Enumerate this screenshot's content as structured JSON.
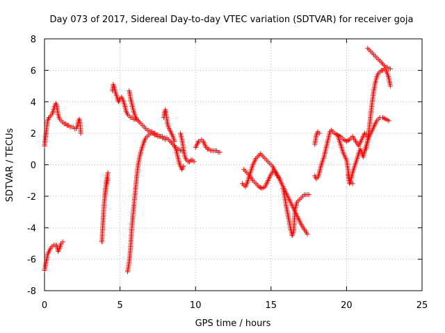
{
  "chart_data": {
    "type": "scatter",
    "title": "Day 073 of 2017, Sidereal Day-to-day VTEC variation (SDTVAR) for receiver goja",
    "xlabel": "GPS time / hours",
    "ylabel": "SDTVAR / TECUs",
    "xlim": [
      0,
      25
    ],
    "ylim": [
      -8,
      8
    ],
    "xticks": [
      "0",
      "5",
      "10",
      "15",
      "20",
      "25"
    ],
    "yticks": [
      "-8",
      "-6",
      "-4",
      "-2",
      "0",
      "2",
      "4",
      "6",
      "8"
    ],
    "grid": true,
    "marker": "+",
    "color": "#ff0000",
    "series": [
      {
        "name": "s1",
        "x": [
          0.0,
          0.05,
          0.1,
          0.15,
          0.2,
          0.3,
          0.4,
          0.5,
          0.6,
          0.7,
          0.75,
          0.8,
          0.85,
          0.9,
          1.0,
          1.1,
          1.2,
          1.3,
          1.4,
          1.5,
          1.6,
          1.7,
          1.8,
          1.9,
          2.0,
          2.1,
          2.2,
          2.25,
          2.3,
          2.35,
          2.4
        ],
        "y": [
          1.2,
          1.6,
          2.0,
          2.4,
          2.8,
          3.0,
          3.1,
          3.2,
          3.5,
          3.8,
          3.9,
          3.8,
          3.5,
          3.2,
          2.9,
          2.8,
          2.7,
          2.6,
          2.6,
          2.5,
          2.5,
          2.4,
          2.4,
          2.4,
          2.3,
          2.3,
          2.5,
          2.8,
          2.9,
          2.7,
          2.0
        ]
      },
      {
        "name": "s2",
        "x": [
          0.0,
          0.05,
          0.1,
          0.15,
          0.2,
          0.3,
          0.4,
          0.5,
          0.6,
          0.7,
          0.8,
          0.9,
          1.0,
          1.1,
          1.2
        ],
        "y": [
          -6.7,
          -6.5,
          -6.2,
          -6.0,
          -5.7,
          -5.5,
          -5.3,
          -5.2,
          -5.1,
          -5.1,
          -5.1,
          -5.5,
          -5.3,
          -5.0,
          -4.9
        ]
      },
      {
        "name": "s3",
        "x": [
          3.8,
          3.85,
          3.9,
          3.95,
          4.0,
          4.05,
          4.1,
          4.15,
          4.2
        ],
        "y": [
          -4.9,
          -4.0,
          -3.2,
          -2.5,
          -2.0,
          -1.5,
          -1.0,
          -0.8,
          -0.5
        ]
      },
      {
        "name": "s4",
        "x": [
          4.0,
          4.05,
          4.1,
          4.15,
          4.2
        ],
        "y": [
          -2.0,
          -1.6,
          -1.3,
          -1.1,
          -0.9
        ]
      },
      {
        "name": "s5",
        "x": [
          4.5,
          4.55,
          4.6,
          4.7,
          4.8,
          4.9,
          5.0,
          5.1,
          5.2,
          5.3,
          5.4,
          5.5,
          5.6,
          5.7,
          5.8,
          5.9,
          6.0,
          6.1,
          6.2
        ],
        "y": [
          4.7,
          5.1,
          5.0,
          4.6,
          4.3,
          4.0,
          4.2,
          4.3,
          4.1,
          3.8,
          3.4,
          3.2,
          3.1,
          3.0,
          3.0,
          2.9,
          2.9,
          2.9,
          2.8
        ]
      },
      {
        "name": "s6",
        "x": [
          5.6,
          5.65,
          5.7,
          5.8,
          5.9,
          6.0,
          6.1,
          6.2,
          6.3,
          6.4,
          6.5,
          6.6,
          6.7,
          6.8,
          6.9,
          7.0,
          7.1,
          7.2,
          7.3,
          7.4,
          7.5,
          7.6,
          7.7,
          7.8,
          7.9,
          8.0,
          8.1,
          8.2,
          8.3,
          8.4,
          8.5,
          8.6,
          8.7,
          8.8,
          8.9,
          9.0,
          9.1,
          9.2
        ],
        "y": [
          4.7,
          4.5,
          4.2,
          3.8,
          3.4,
          3.1,
          2.9,
          2.8,
          2.7,
          2.6,
          2.5,
          2.4,
          2.3,
          2.2,
          2.2,
          2.1,
          2.1,
          2.0,
          2.0,
          1.9,
          1.9,
          1.8,
          1.8,
          1.8,
          1.7,
          1.7,
          1.7,
          1.6,
          1.5,
          1.4,
          1.3,
          1.2,
          1.1,
          1.0,
          1.0,
          0.9,
          0.9,
          0.9
        ]
      },
      {
        "name": "s7",
        "x": [
          5.5,
          5.55,
          5.6,
          5.65,
          5.7,
          5.75,
          5.8,
          5.9,
          6.0,
          6.1,
          6.2,
          6.3,
          6.4,
          6.5,
          6.6,
          6.7,
          6.8,
          6.9,
          7.0,
          7.1,
          7.2,
          7.3,
          7.4,
          7.5,
          7.6,
          7.7,
          7.8,
          7.9,
          8.0
        ],
        "y": [
          -6.8,
          -6.5,
          -6.2,
          -5.8,
          -5.2,
          -4.5,
          -3.8,
          -2.8,
          -1.8,
          -0.8,
          0.0,
          0.5,
          0.9,
          1.2,
          1.5,
          1.7,
          1.8,
          1.9,
          2.0,
          2.0,
          2.0,
          1.9,
          1.9,
          1.8,
          1.8,
          1.8,
          1.7,
          1.7,
          1.6
        ]
      },
      {
        "name": "s8",
        "x": [
          7.9,
          7.95,
          8.0,
          8.05,
          8.1,
          8.15,
          8.2,
          8.3,
          8.4,
          8.5,
          8.6
        ],
        "y": [
          3.0,
          3.3,
          3.5,
          3.2,
          2.9,
          2.6,
          2.4,
          2.2,
          2.0,
          1.8,
          1.5
        ]
      },
      {
        "name": "s9",
        "x": [
          8.6,
          8.7,
          8.8,
          8.9,
          9.0,
          9.1,
          9.2
        ],
        "y": [
          1.2,
          1.0,
          0.6,
          0.2,
          -0.1,
          -0.3,
          -0.1
        ]
      },
      {
        "name": "s10",
        "x": [
          9.0,
          9.1,
          9.2,
          9.3,
          9.4,
          9.5,
          9.6,
          9.7,
          9.8,
          9.9
        ],
        "y": [
          2.0,
          1.6,
          1.0,
          0.5,
          0.3,
          0.2,
          0.2,
          0.3,
          0.3,
          0.2
        ]
      },
      {
        "name": "s11",
        "x": [
          10.0,
          10.1,
          10.2,
          10.3,
          10.4,
          10.5,
          10.6,
          10.7,
          10.8,
          10.9,
          11.0,
          11.1,
          11.2,
          11.3,
          11.4,
          11.5,
          11.6
        ],
        "y": [
          1.1,
          1.3,
          1.5,
          1.5,
          1.6,
          1.5,
          1.3,
          1.1,
          1.0,
          1.0,
          0.9,
          0.9,
          0.9,
          0.9,
          0.9,
          0.8,
          0.8
        ]
      },
      {
        "name": "s12",
        "x": [
          13.1,
          13.2,
          13.3,
          13.4,
          13.5,
          13.6,
          13.7,
          13.8,
          13.9,
          14.0,
          14.1,
          14.2,
          14.3,
          14.4,
          14.5,
          14.6,
          14.7,
          14.8,
          14.9,
          15.0,
          15.1,
          15.2,
          15.3,
          15.4,
          15.5,
          15.6
        ],
        "y": [
          -1.2,
          -1.3,
          -1.4,
          -1.2,
          -0.9,
          -0.6,
          -0.3,
          0.0,
          0.2,
          0.4,
          0.5,
          0.6,
          0.7,
          0.6,
          0.5,
          0.4,
          0.3,
          0.2,
          0.1,
          0.0,
          -0.1,
          -0.3,
          -0.5,
          -0.7,
          -0.8,
          -0.9
        ]
      },
      {
        "name": "s13",
        "x": [
          13.2,
          13.4,
          13.6,
          13.8,
          14.0,
          14.2,
          14.4,
          14.6,
          14.8,
          15.0,
          15.2,
          15.4,
          15.6,
          15.8,
          16.0,
          16.2,
          16.4,
          16.6,
          16.8,
          17.0,
          17.2,
          17.4
        ],
        "y": [
          -0.3,
          -0.5,
          -0.7,
          -1.0,
          -1.2,
          -1.4,
          -1.5,
          -1.4,
          -1.0,
          -0.6,
          -0.3,
          -0.6,
          -1.0,
          -1.4,
          -1.8,
          -2.2,
          -2.6,
          -3.0,
          -3.4,
          -3.8,
          -4.1,
          -4.4
        ]
      },
      {
        "name": "s14",
        "x": [
          15.8,
          15.9,
          16.0,
          16.1,
          16.2,
          16.3,
          16.4,
          16.5,
          16.6,
          16.7,
          16.8,
          16.9,
          17.0,
          17.1,
          17.2,
          17.3,
          17.4,
          17.5
        ],
        "y": [
          -1.5,
          -2.0,
          -2.6,
          -3.1,
          -3.6,
          -4.1,
          -4.5,
          -4.2,
          -2.8,
          -2.4,
          -2.3,
          -2.2,
          -2.1,
          -2.0,
          -1.9,
          -1.9,
          -1.9,
          -1.9
        ]
      },
      {
        "name": "s15",
        "x": [
          17.9,
          17.95,
          18.0,
          18.05,
          18.1,
          18.2
        ],
        "y": [
          1.3,
          1.6,
          1.9,
          2.0,
          2.1,
          2.0
        ]
      },
      {
        "name": "s16",
        "x": [
          17.9,
          18.0,
          18.1,
          18.2,
          18.3,
          18.4,
          18.5,
          18.6,
          18.7,
          18.8,
          18.9,
          19.0,
          19.2,
          19.4,
          19.6,
          19.8,
          20.0,
          20.2,
          20.4,
          20.6,
          20.8,
          21.0,
          21.2,
          21.4
        ],
        "y": [
          -0.7,
          -0.9,
          -0.8,
          -0.5,
          -0.1,
          0.2,
          0.5,
          0.9,
          1.3,
          1.7,
          2.1,
          2.2,
          2.0,
          1.9,
          1.8,
          1.6,
          1.5,
          1.6,
          1.8,
          1.5,
          1.2,
          1.6,
          2.0,
          1.8
        ]
      },
      {
        "name": "s17",
        "x": [
          20.1,
          20.2,
          20.3,
          20.4,
          20.5,
          20.6,
          20.7,
          20.8,
          20.9,
          21.0,
          21.1,
          21.2,
          21.3,
          21.4,
          21.5,
          21.6,
          21.7,
          21.8,
          21.9,
          22.0,
          22.2,
          22.4,
          22.6,
          22.8
        ],
        "y": [
          -0.6,
          -1.2,
          -0.9,
          -0.5,
          -0.2,
          0.1,
          0.4,
          0.7,
          1.0,
          0.8,
          0.5,
          0.9,
          1.2,
          1.5,
          1.8,
          2.0,
          2.2,
          2.4,
          2.6,
          2.8,
          3.0,
          3.0,
          2.9,
          2.8
        ]
      },
      {
        "name": "s18",
        "x": [
          21.3,
          21.4,
          21.5,
          21.6,
          21.7,
          21.8,
          21.9,
          22.0,
          22.1,
          22.2,
          22.3,
          22.4,
          22.5,
          22.6,
          22.7,
          22.8,
          22.9
        ],
        "y": [
          1.0,
          1.6,
          2.3,
          3.2,
          4.0,
          4.7,
          5.2,
          5.6,
          5.8,
          5.9,
          6.0,
          6.0,
          6.1,
          6.0,
          5.8,
          5.5,
          5.0
        ]
      },
      {
        "name": "s19",
        "x": [
          21.4,
          21.5,
          21.6,
          21.7,
          21.8,
          21.9,
          22.0,
          22.1,
          22.2,
          22.3,
          22.4,
          22.5,
          22.6,
          22.7,
          22.8,
          22.9
        ],
        "y": [
          7.4,
          7.3,
          7.2,
          7.1,
          7.0,
          6.9,
          6.8,
          6.7,
          6.6,
          6.5,
          6.4,
          6.3,
          6.2,
          6.2,
          6.1,
          6.1
        ]
      },
      {
        "name": "s20",
        "x": [
          19.4,
          19.5,
          19.6,
          19.7,
          19.8,
          19.9,
          20.0,
          20.2,
          20.4
        ],
        "y": [
          1.9,
          1.6,
          1.3,
          1.0,
          0.7,
          0.5,
          0.3,
          -1.0,
          -1.2
        ]
      }
    ]
  }
}
